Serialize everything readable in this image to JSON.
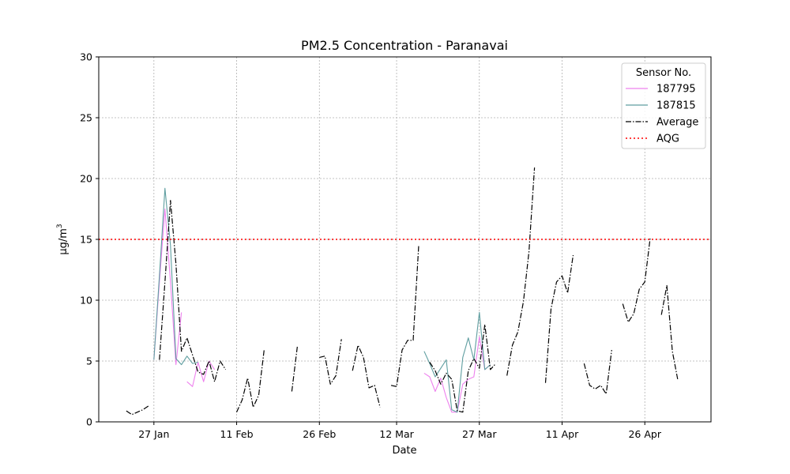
{
  "chart_data": {
    "type": "line",
    "title": "PM2.5 Concentration - Paranavai",
    "xlabel": "Date",
    "ylabel": "μg/m³",
    "ylabel_base": "μg/m",
    "ylabel_sup": "3",
    "ylim": [
      0,
      30
    ],
    "yticks": [
      0,
      5,
      10,
      15,
      20,
      25,
      30
    ],
    "xlim": [
      "2021-01-17",
      "2021-05-08"
    ],
    "xticks": [
      {
        "date": "2021-01-27",
        "label": "27 Jan"
      },
      {
        "date": "2021-02-11",
        "label": "11 Feb"
      },
      {
        "date": "2021-02-26",
        "label": "26 Feb"
      },
      {
        "date": "2021-03-12",
        "label": "12 Mar"
      },
      {
        "date": "2021-03-27",
        "label": "27 Mar"
      },
      {
        "date": "2021-04-11",
        "label": "11 Apr"
      },
      {
        "date": "2021-04-26",
        "label": "26 Apr"
      }
    ],
    "grid": true,
    "legend_title": "Sensor No.",
    "legend_position": "top-right",
    "series": [
      {
        "name": "187795",
        "color": "#ee82ee",
        "style": "solid",
        "segments": [
          [
            [
              "2021-01-27",
              5.1
            ],
            [
              "2021-01-28",
              11.5
            ],
            [
              "2021-01-29",
              17.5
            ],
            [
              "2021-01-30",
              11.5
            ],
            [
              "2021-01-31",
              4.7
            ],
            [
              "2021-02-01",
              9.0
            ]
          ],
          [
            [
              "2021-02-02",
              3.3
            ],
            [
              "2021-02-03",
              2.9
            ],
            [
              "2021-02-04",
              4.9
            ],
            [
              "2021-02-05",
              3.3
            ],
            [
              "2021-02-06",
              5.0
            ],
            [
              "2021-02-07",
              4.3
            ]
          ],
          [
            [
              "2021-03-17",
              4.0
            ],
            [
              "2021-03-18",
              3.7
            ],
            [
              "2021-03-19",
              2.5
            ],
            [
              "2021-03-20",
              3.6
            ],
            [
              "2021-03-21",
              2.0
            ],
            [
              "2021-03-22",
              0.8
            ],
            [
              "2021-03-23",
              0.8
            ],
            [
              "2021-03-24",
              3.1
            ],
            [
              "2021-03-25",
              3.5
            ],
            [
              "2021-03-26",
              3.7
            ],
            [
              "2021-03-27",
              7.0
            ],
            [
              "2021-03-28",
              4.3
            ],
            [
              "2021-03-29",
              4.7
            ]
          ]
        ]
      },
      {
        "name": "187815",
        "color": "#5f9ea0",
        "style": "solid",
        "segments": [
          [
            [
              "2021-01-27",
              5.1
            ],
            [
              "2021-01-28",
              12.0
            ],
            [
              "2021-01-29",
              19.2
            ],
            [
              "2021-01-30",
              14.5
            ],
            [
              "2021-01-31",
              5.2
            ],
            [
              "2021-02-01",
              4.7
            ],
            [
              "2021-02-02",
              5.4
            ],
            [
              "2021-02-03",
              4.8
            ],
            [
              "2021-02-04",
              4.9
            ]
          ],
          [
            [
              "2021-03-17",
              5.8
            ],
            [
              "2021-03-18",
              4.8
            ],
            [
              "2021-03-19",
              3.7
            ],
            [
              "2021-03-20",
              4.4
            ],
            [
              "2021-03-21",
              5.1
            ],
            [
              "2021-03-22",
              1.0
            ],
            [
              "2021-03-23",
              0.8
            ],
            [
              "2021-03-24",
              5.3
            ],
            [
              "2021-03-25",
              6.9
            ],
            [
              "2021-03-26",
              5.1
            ],
            [
              "2021-03-27",
              9.0
            ],
            [
              "2021-03-28",
              4.3
            ],
            [
              "2021-03-29",
              4.7
            ]
          ]
        ]
      },
      {
        "name": "Average",
        "color": "#000000",
        "style": "dashdot",
        "segments": [
          [
            [
              "2021-01-22",
              0.9
            ],
            [
              "2021-01-23",
              0.6
            ],
            [
              "2021-01-24",
              0.8
            ],
            [
              "2021-01-25",
              1.0
            ],
            [
              "2021-01-26",
              1.3
            ]
          ],
          [
            [
              "2021-01-28",
              5.1
            ],
            [
              "2021-01-29",
              11.5
            ],
            [
              "2021-01-30",
              18.2
            ],
            [
              "2021-01-31",
              13.0
            ],
            [
              "2021-02-01",
              5.8
            ],
            [
              "2021-02-02",
              6.9
            ],
            [
              "2021-02-03",
              5.5
            ],
            [
              "2021-02-04",
              4.1
            ],
            [
              "2021-02-05",
              3.9
            ],
            [
              "2021-02-06",
              5.0
            ],
            [
              "2021-02-07",
              3.3
            ],
            [
              "2021-02-08",
              5.0
            ],
            [
              "2021-02-09",
              4.3
            ]
          ],
          [
            [
              "2021-02-11",
              0.8
            ],
            [
              "2021-02-12",
              1.8
            ],
            [
              "2021-02-13",
              3.6
            ],
            [
              "2021-02-14",
              1.2
            ],
            [
              "2021-02-15",
              2.2
            ],
            [
              "2021-02-16",
              6.0
            ]
          ],
          [
            [
              "2021-02-21",
              2.5
            ],
            [
              "2021-02-22",
              6.2
            ]
          ],
          [
            [
              "2021-02-26",
              5.3
            ],
            [
              "2021-02-27",
              5.4
            ],
            [
              "2021-02-28",
              3.1
            ],
            [
              "2021-03-01",
              3.8
            ],
            [
              "2021-03-02",
              6.8
            ]
          ],
          [
            [
              "2021-03-04",
              4.2
            ],
            [
              "2021-03-05",
              6.3
            ],
            [
              "2021-03-06",
              5.3
            ],
            [
              "2021-03-07",
              2.8
            ],
            [
              "2021-03-08",
              3.0
            ],
            [
              "2021-03-09",
              1.2
            ]
          ],
          [
            [
              "2021-03-11",
              3.0
            ],
            [
              "2021-03-12",
              2.9
            ],
            [
              "2021-03-13",
              5.9
            ],
            [
              "2021-03-14",
              6.7
            ],
            [
              "2021-03-15",
              6.7
            ],
            [
              "2021-03-16",
              14.5
            ]
          ],
          [
            [
              "2021-03-18",
              4.9
            ],
            [
              "2021-03-19",
              4.2
            ],
            [
              "2021-03-20",
              3.1
            ],
            [
              "2021-03-21",
              4.0
            ],
            [
              "2021-03-22",
              3.5
            ],
            [
              "2021-03-23",
              0.9
            ],
            [
              "2021-03-24",
              0.8
            ],
            [
              "2021-03-25",
              4.2
            ],
            [
              "2021-03-26",
              5.2
            ],
            [
              "2021-03-27",
              4.4
            ],
            [
              "2021-03-28",
              8.0
            ],
            [
              "2021-03-29",
              4.3
            ],
            [
              "2021-03-30",
              4.8
            ]
          ],
          [
            [
              "2021-04-01",
              3.8
            ],
            [
              "2021-04-02",
              6.3
            ],
            [
              "2021-04-03",
              7.4
            ],
            [
              "2021-04-04",
              9.9
            ],
            [
              "2021-04-05",
              14.0
            ],
            [
              "2021-04-06",
              20.9
            ]
          ],
          [
            [
              "2021-04-08",
              3.2
            ],
            [
              "2021-04-09",
              9.3
            ],
            [
              "2021-04-10",
              11.5
            ],
            [
              "2021-04-11",
              12.0
            ],
            [
              "2021-04-12",
              10.6
            ],
            [
              "2021-04-13",
              13.7
            ]
          ],
          [
            [
              "2021-04-15",
              4.8
            ],
            [
              "2021-04-16",
              3.0
            ],
            [
              "2021-04-17",
              2.7
            ],
            [
              "2021-04-18",
              3.0
            ],
            [
              "2021-04-19",
              2.3
            ],
            [
              "2021-04-20",
              5.9
            ]
          ],
          [
            [
              "2021-04-22",
              9.7
            ],
            [
              "2021-04-23",
              8.2
            ],
            [
              "2021-04-24",
              8.9
            ],
            [
              "2021-04-25",
              10.9
            ],
            [
              "2021-04-26",
              11.5
            ],
            [
              "2021-04-27",
              15.2
            ]
          ],
          [
            [
              "2021-04-29",
              8.8
            ],
            [
              "2021-04-30",
              11.2
            ],
            [
              "2021-05-01",
              5.8
            ],
            [
              "2021-05-02",
              3.4
            ]
          ]
        ]
      },
      {
        "name": "AQG",
        "color": "#ff0000",
        "style": "dotted",
        "hline": 15
      }
    ]
  }
}
